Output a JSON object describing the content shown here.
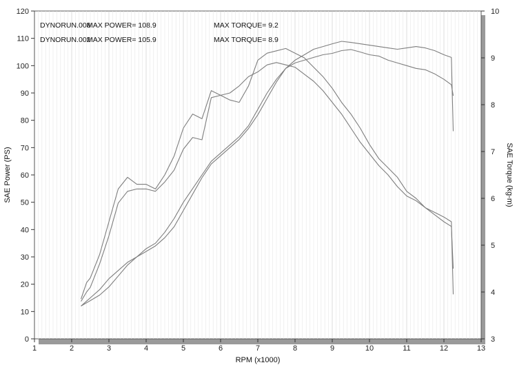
{
  "chart_data": {
    "type": "line",
    "xlabel": "RPM (x1000)",
    "ylabel_left": "SAE Power (PS)",
    "ylabel_right": "SAE Torque (kg-m)",
    "xlim": [
      1,
      13
    ],
    "ylim_left": [
      0,
      120
    ],
    "ylim_right": [
      3,
      10
    ],
    "x_ticks": [
      "1",
      "2",
      "3",
      "4",
      "5",
      "6",
      "7",
      "8",
      "9",
      "10",
      "11",
      "12",
      "13"
    ],
    "y_left_ticks": [
      "0",
      "10",
      "20",
      "30",
      "40",
      "50",
      "60",
      "70",
      "80",
      "90",
      "100",
      "110",
      "120"
    ],
    "y_right_ticks": [
      "3",
      "4",
      "5",
      "6",
      "7",
      "8",
      "9",
      "10"
    ],
    "grid": false,
    "annotations": {
      "run1": "DYNORUN.008",
      "power1": "MAX POWER= 108.9",
      "torque1": "MAX TORQUE= 9.2",
      "run2": "DYNORUN.002",
      "power2": "MAX POWER= 105.9",
      "torque2": "MAX TORQUE= 8.9"
    },
    "series": [
      {
        "axis": "left",
        "x": [
          2.25,
          2.5,
          2.75,
          3.0,
          3.25,
          3.5,
          3.75,
          4.0,
          4.25,
          4.5,
          4.75,
          5.0,
          5.25,
          5.5,
          5.75,
          6.0,
          6.25,
          6.5,
          6.75,
          7.0,
          7.25,
          7.5,
          7.75,
          8.0,
          8.25,
          8.5,
          8.75,
          9.0,
          9.25,
          9.5,
          9.75,
          10.0,
          10.25,
          10.5,
          10.75,
          11.0,
          11.25,
          11.5,
          11.75,
          12.0,
          12.2,
          12.25
        ],
        "values": [
          12,
          15,
          18,
          22,
          25,
          28,
          30,
          32,
          34,
          37,
          41,
          47,
          53,
          59,
          64,
          67,
          70,
          73,
          77,
          82,
          88,
          94,
          99,
          102,
          104,
          106,
          107,
          108,
          108.9,
          108.5,
          108,
          107.5,
          107,
          106.5,
          106,
          106.5,
          107,
          106.5,
          105.5,
          104,
          103,
          76
        ]
      },
      {
        "axis": "left",
        "x": [
          2.25,
          2.5,
          2.75,
          3.0,
          3.25,
          3.5,
          3.75,
          4.0,
          4.25,
          4.5,
          4.75,
          5.0,
          5.25,
          5.5,
          5.75,
          6.0,
          6.25,
          6.5,
          6.75,
          7.0,
          7.25,
          7.5,
          7.75,
          8.0,
          8.25,
          8.5,
          8.75,
          9.0,
          9.25,
          9.5,
          9.75,
          10.0,
          10.25,
          10.5,
          10.75,
          11.0,
          11.25,
          11.5,
          11.75,
          12.0,
          12.2,
          12.25
        ],
        "values": [
          12,
          14,
          16,
          19,
          23,
          27,
          30,
          33,
          35,
          39,
          44,
          50,
          55,
          60,
          65,
          68,
          71,
          74,
          78,
          84,
          90,
          95,
          99,
          101,
          102,
          103,
          104,
          104.5,
          105.5,
          105.9,
          105,
          104,
          103.5,
          102,
          101,
          100,
          99,
          98.5,
          97,
          95,
          93,
          89
        ]
      },
      {
        "axis": "right",
        "x": [
          2.25,
          2.4,
          2.5,
          2.75,
          3.0,
          3.25,
          3.5,
          3.75,
          4.0,
          4.25,
          4.5,
          4.75,
          5.0,
          5.25,
          5.5,
          5.75,
          6.0,
          6.25,
          6.5,
          6.75,
          7.0,
          7.25,
          7.5,
          7.75,
          8.0,
          8.25,
          8.5,
          8.75,
          9.0,
          9.25,
          9.5,
          9.75,
          10.0,
          10.25,
          10.5,
          10.75,
          11.0,
          11.25,
          11.5,
          11.75,
          12.0,
          12.2,
          12.25
        ],
        "values": [
          3.85,
          4.2,
          4.3,
          4.8,
          5.5,
          6.2,
          6.45,
          6.3,
          6.3,
          6.2,
          6.5,
          6.9,
          7.5,
          7.8,
          7.7,
          8.3,
          8.2,
          8.1,
          8.05,
          8.4,
          8.95,
          9.1,
          9.15,
          9.2,
          9.1,
          9.0,
          8.8,
          8.6,
          8.35,
          8.05,
          7.8,
          7.5,
          7.15,
          6.85,
          6.65,
          6.45,
          6.15,
          6.0,
          5.8,
          5.65,
          5.5,
          5.4,
          4.5
        ]
      },
      {
        "axis": "right",
        "x": [
          2.25,
          2.4,
          2.5,
          2.75,
          3.0,
          3.25,
          3.5,
          3.75,
          4.0,
          4.25,
          4.5,
          4.75,
          5.0,
          5.25,
          5.5,
          5.75,
          6.0,
          6.25,
          6.5,
          6.75,
          7.0,
          7.25,
          7.5,
          7.75,
          8.0,
          8.25,
          8.5,
          8.75,
          9.0,
          9.25,
          9.5,
          9.75,
          10.0,
          10.25,
          10.5,
          10.75,
          11.0,
          11.25,
          11.5,
          11.75,
          12.0,
          12.2,
          12.25
        ],
        "values": [
          3.8,
          4.0,
          4.1,
          4.6,
          5.2,
          5.9,
          6.15,
          6.2,
          6.2,
          6.15,
          6.35,
          6.6,
          7.05,
          7.3,
          7.25,
          8.15,
          8.2,
          8.25,
          8.4,
          8.6,
          8.7,
          8.85,
          8.9,
          8.85,
          8.8,
          8.65,
          8.5,
          8.3,
          8.05,
          7.8,
          7.5,
          7.2,
          6.95,
          6.7,
          6.5,
          6.25,
          6.05,
          5.95,
          5.8,
          5.7,
          5.6,
          5.5,
          3.95
        ]
      }
    ]
  }
}
